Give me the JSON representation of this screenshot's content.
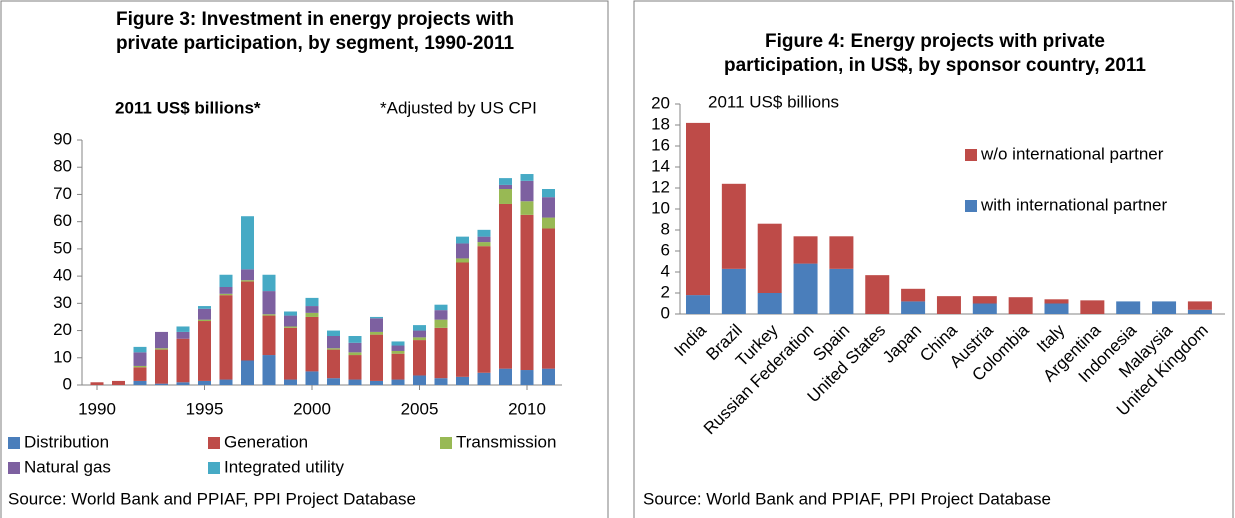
{
  "chart_data": [
    {
      "type": "stacked_bar",
      "title": [
        "Figure 3: Investment in energy projects with",
        "private participation, by segment, 1990-2011"
      ],
      "unit_label": "2011 US$ billions*",
      "note": "*Adjusted by US CPI",
      "source": "Source: World Bank and PPIAF, PPI Project Database",
      "categories": [
        "1990",
        null,
        null,
        null,
        null,
        "1995",
        null,
        null,
        null,
        null,
        "2000",
        null,
        null,
        null,
        null,
        "2005",
        null,
        null,
        null,
        null,
        "2010",
        null
      ],
      "series": [
        {
          "name": "Distribution",
          "color": "#4a7ebb",
          "values": [
            0,
            0,
            1.5,
            0.5,
            1,
            1.5,
            2,
            9,
            11,
            2,
            5,
            2.5,
            2,
            1.5,
            2,
            3.5,
            2.5,
            3,
            4.5,
            6,
            5.5,
            6
          ]
        },
        {
          "name": "Generation",
          "color": "#be4b48",
          "values": [
            1,
            1.5,
            5,
            12.5,
            16,
            22,
            31,
            29,
            14.5,
            19,
            20,
            10.5,
            9,
            17,
            9.5,
            13,
            18.5,
            42,
            46.5,
            60.5,
            57,
            51.5
          ]
        },
        {
          "name": "Transmission",
          "color": "#98b954",
          "values": [
            0,
            0,
            0.5,
            0.5,
            0,
            0.5,
            0.5,
            0.5,
            0.5,
            0.5,
            1.5,
            0.5,
            1,
            1,
            1,
            1,
            3,
            1.5,
            1.5,
            5.5,
            5,
            4
          ]
        },
        {
          "name": "Natural gas",
          "color": "#7d60a0",
          "values": [
            0,
            0,
            5,
            6,
            2.5,
            4,
            2.5,
            4,
            8.5,
            4,
            2.5,
            4.5,
            3.5,
            5,
            2,
            2.5,
            3.5,
            5.5,
            2,
            1.5,
            7.5,
            7.5
          ]
        },
        {
          "name": "Integrated utility",
          "color": "#46aac5",
          "values": [
            0,
            0,
            2,
            0,
            2,
            1,
            4.5,
            19.5,
            6,
            1.5,
            3,
            2,
            2.5,
            0.5,
            1.5,
            2,
            2,
            2.5,
            2.5,
            2.5,
            2.5,
            3
          ]
        }
      ],
      "ylim": [
        0,
        90
      ],
      "yticks": [
        0,
        10,
        20,
        30,
        40,
        50,
        60,
        70,
        80,
        90
      ],
      "grid": false
    },
    {
      "type": "stacked_bar",
      "title": [
        "Figure 4: Energy projects with private",
        "participation, in US$, by sponsor country, 2011"
      ],
      "unit_label": "2011 US$ billions",
      "source": "Source: World Bank and PPIAF, PPI Project Database",
      "categories": [
        "India",
        "Brazil",
        "Turkey",
        "Russian Federation",
        "Spain",
        "United States",
        "Japan",
        "China",
        "Austria",
        "Colombia",
        "Italy",
        "Argentina",
        "Indonesia",
        "Malaysia",
        "United Kingdom"
      ],
      "series": [
        {
          "name": "with international partner",
          "color": "#4a7ebb",
          "values": [
            1.8,
            4.3,
            2.0,
            4.8,
            4.3,
            0,
            1.2,
            0,
            1.0,
            0,
            1.0,
            0,
            1.2,
            1.2,
            0.4
          ]
        },
        {
          "name": "w/o international partner",
          "color": "#be4b48",
          "values": [
            16.4,
            8.1,
            6.6,
            2.6,
            3.1,
            3.7,
            1.2,
            1.7,
            0.7,
            1.6,
            0.4,
            1.3,
            0,
            0,
            0.8
          ]
        }
      ],
      "ylim": [
        0,
        20
      ],
      "yticks": [
        0,
        2,
        4,
        6,
        8,
        10,
        12,
        14,
        16,
        18,
        20
      ],
      "grid": false
    }
  ]
}
